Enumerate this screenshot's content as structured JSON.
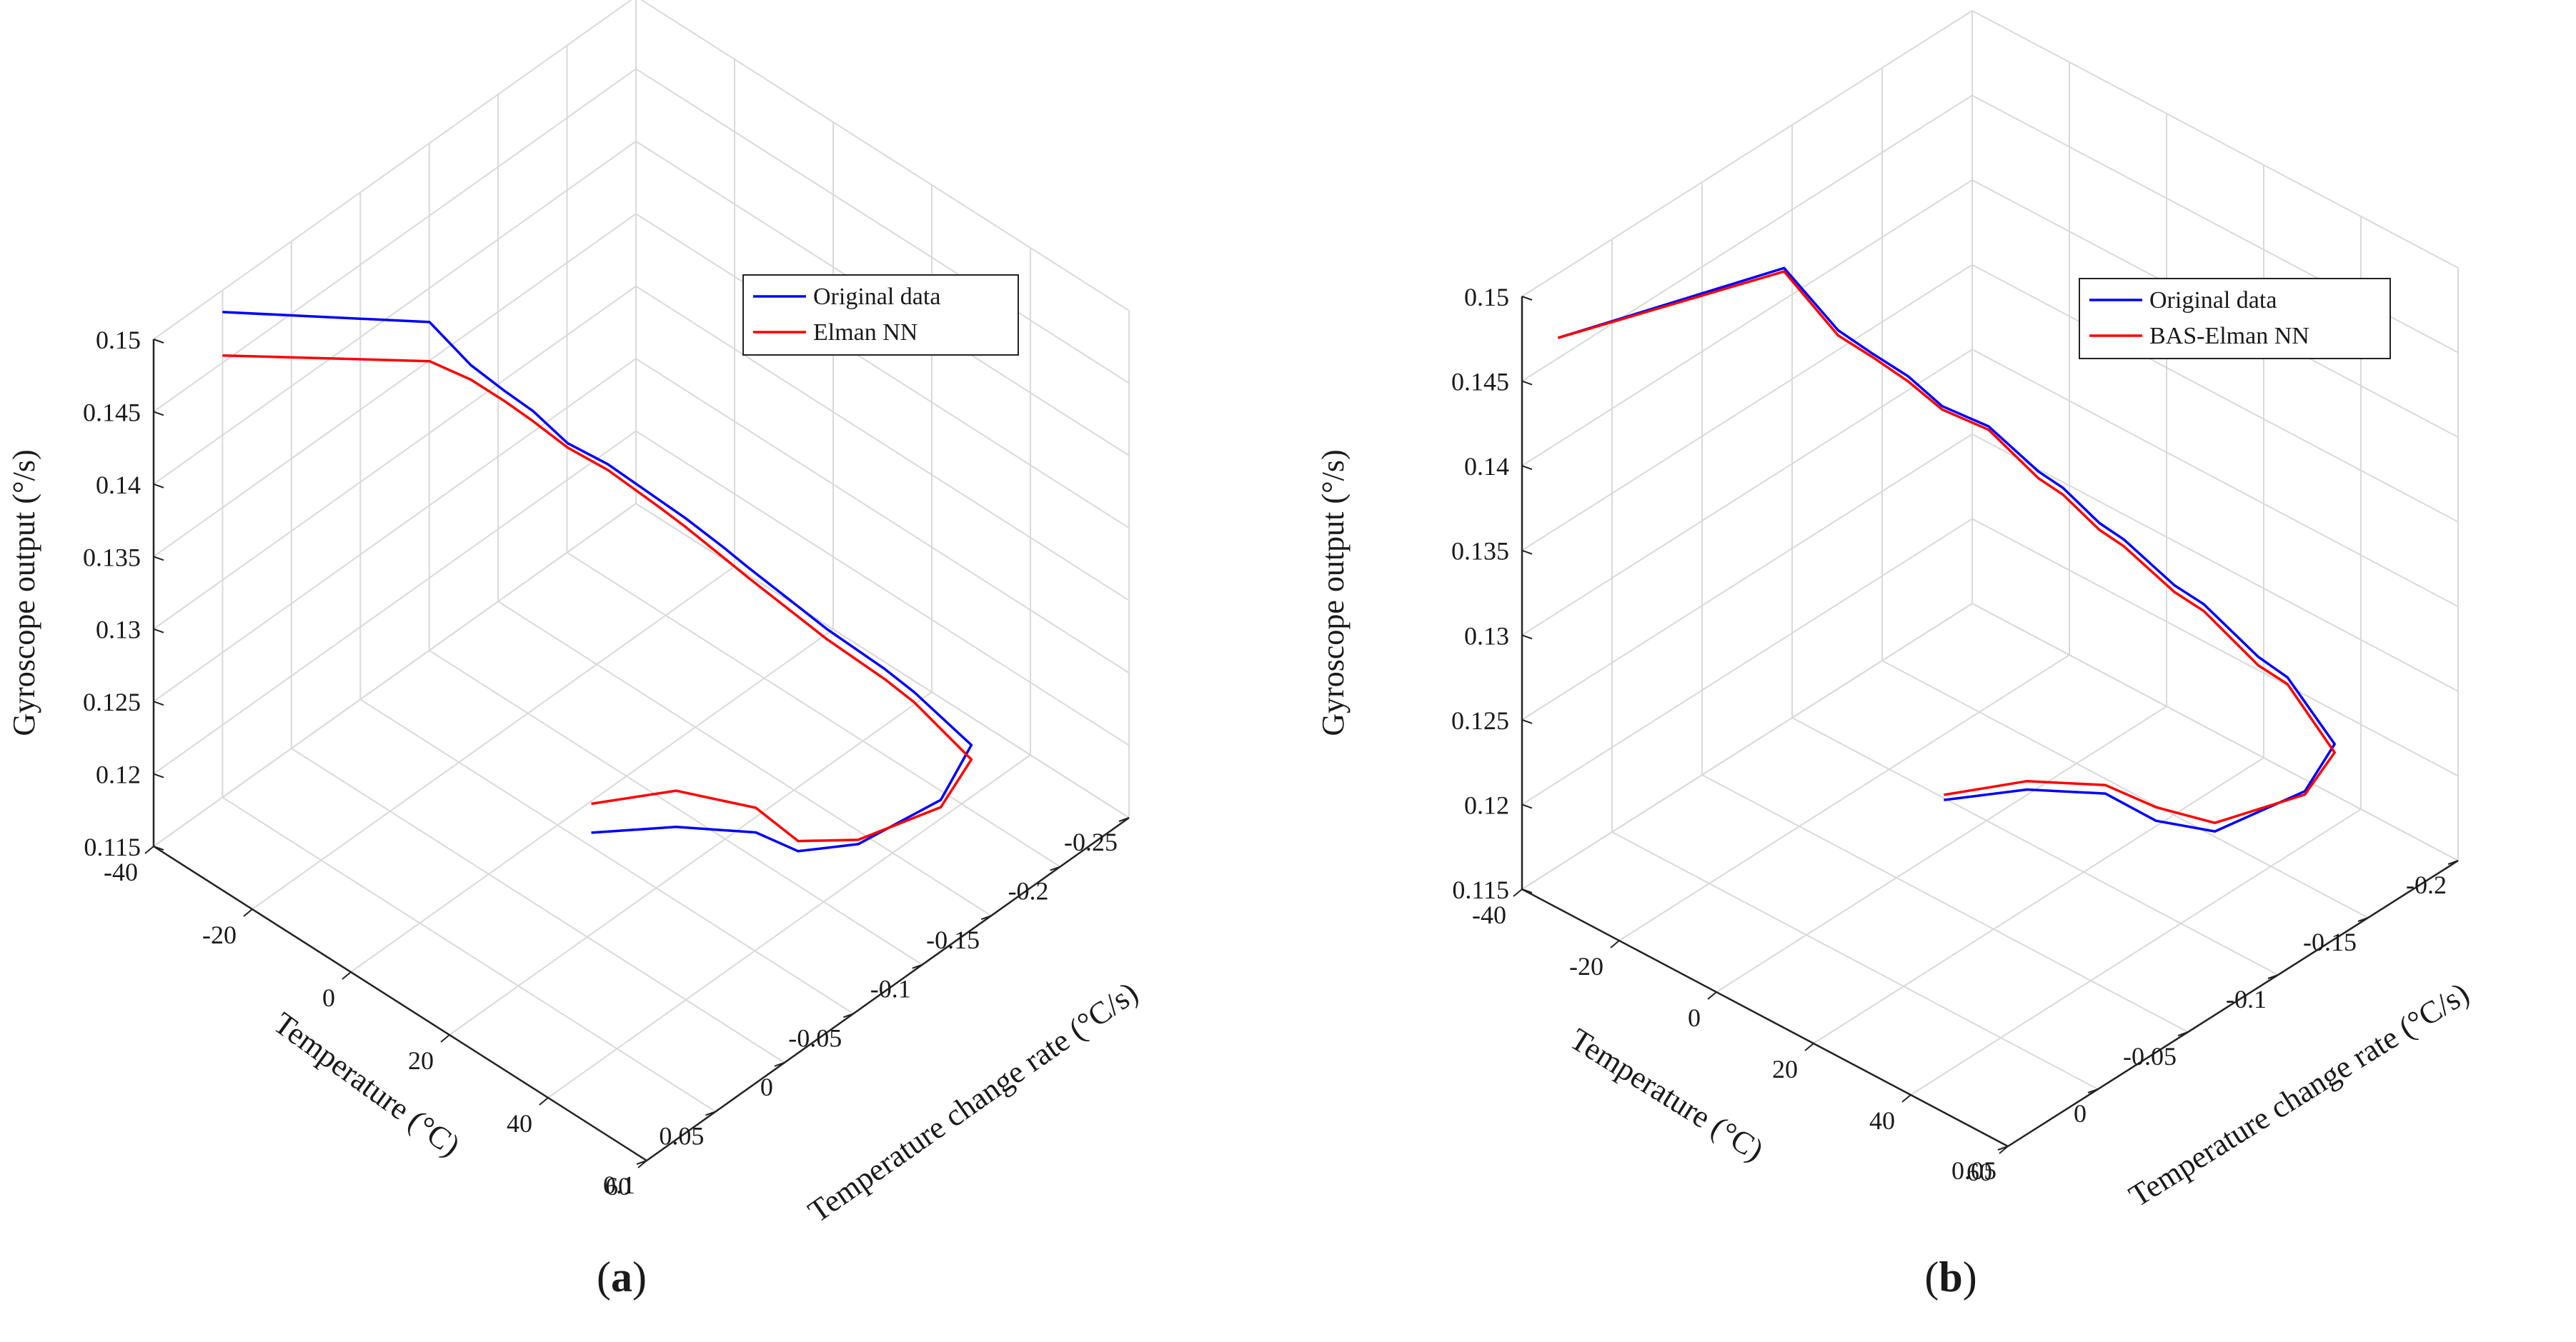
{
  "chart_data": [
    {
      "type": "line",
      "panel_label": "a",
      "zlabel": "Gyroscope output (°/s)",
      "xlabel": "Temperature (°C)",
      "ylabel": "Temperature change rate (°C/s)",
      "zlim": [
        0.115,
        0.15
      ],
      "z_ticks": [
        "0.115",
        "0.12",
        "0.125",
        "0.13",
        "0.135",
        "0.14",
        "0.145",
        "0.15"
      ],
      "xlim": [
        -40,
        60
      ],
      "x_ticks": [
        "-40",
        "-20",
        "0",
        "20",
        "40",
        "60"
      ],
      "ylim": [
        -0.25,
        0.1
      ],
      "y_ticks": [
        "-0.25",
        "-0.2",
        "-0.15",
        "-0.1",
        "-0.05",
        "0",
        "0.05",
        "0.1"
      ],
      "grid": true,
      "legend_position": "top-right",
      "series": [
        {
          "name": "Original data",
          "color": "#0000ff",
          "points": [
            [
              -40,
              0.05,
              0.1485
            ],
            [
              -12,
              0.0,
              0.1505
            ],
            [
              -12,
              -0.03,
              0.1455
            ],
            [
              -5,
              -0.03,
              0.1452
            ],
            [
              -5,
              -0.05,
              0.1425
            ],
            [
              2,
              -0.05,
              0.1418
            ],
            [
              6,
              -0.065,
              0.1402
            ],
            [
              7,
              -0.1,
              0.1355
            ],
            [
              12,
              -0.1,
              0.1354
            ],
            [
              14,
              -0.12,
              0.1325
            ],
            [
              19,
              -0.12,
              0.1322
            ],
            [
              22,
              -0.145,
              0.1285
            ],
            [
              28,
              -0.145,
              0.1282
            ],
            [
              30,
              -0.18,
              0.1235
            ],
            [
              36,
              -0.18,
              0.1232
            ],
            [
              42,
              -0.2,
              0.1195
            ],
            [
              47,
              -0.16,
              0.1195
            ],
            [
              47,
              -0.1,
              0.1205
            ],
            [
              46,
              -0.06,
              0.1225
            ],
            [
              43,
              -0.04,
              0.1245
            ],
            [
              38,
              0.0,
              0.1265
            ],
            [
              32,
              0.04,
              0.1275
            ]
          ]
        },
        {
          "name": "Elman NN",
          "color": "#ff0000",
          "points": [
            [
              -40,
              0.05,
              0.1455
            ],
            [
              -12,
              0.0,
              0.1478
            ],
            [
              -12,
              -0.03,
              0.1445
            ],
            [
              -5,
              -0.03,
              0.1445
            ],
            [
              -5,
              -0.05,
              0.1418
            ],
            [
              2,
              -0.05,
              0.1415
            ],
            [
              6,
              -0.065,
              0.1398
            ],
            [
              7,
              -0.1,
              0.135
            ],
            [
              12,
              -0.1,
              0.1348
            ],
            [
              14,
              -0.12,
              0.1318
            ],
            [
              19,
              -0.12,
              0.1315
            ],
            [
              22,
              -0.145,
              0.1278
            ],
            [
              28,
              -0.145,
              0.1275
            ],
            [
              30,
              -0.18,
              0.1228
            ],
            [
              36,
              -0.18,
              0.1225
            ],
            [
              42,
              -0.2,
              0.1185
            ],
            [
              47,
              -0.16,
              0.119
            ],
            [
              47,
              -0.1,
              0.1208
            ],
            [
              46,
              -0.06,
              0.1232
            ],
            [
              43,
              -0.04,
              0.1262
            ],
            [
              38,
              0.0,
              0.129
            ],
            [
              32,
              0.04,
              0.1295
            ]
          ]
        }
      ]
    },
    {
      "type": "line",
      "panel_label": "b",
      "zlabel": "Gyroscope output (°/s)",
      "xlabel": "Temperature (°C)",
      "ylabel": "Temperature change rate (°C/s)",
      "zlim": [
        0.115,
        0.15
      ],
      "z_ticks": [
        "0.115",
        "0.12",
        "0.125",
        "0.13",
        "0.135",
        "0.14",
        "0.145",
        "0.15"
      ],
      "xlim": [
        -40,
        60
      ],
      "x_ticks": [
        "-40",
        "-20",
        "0",
        "20",
        "40",
        "60"
      ],
      "ylim": [
        -0.2,
        0.05
      ],
      "y_ticks": [
        "-0.2",
        "-0.15",
        "-0.1",
        "-0.05",
        "0",
        "0.05"
      ],
      "grid": true,
      "legend_position": "top-right",
      "series": [
        {
          "name": "Original data",
          "color": "#0000ff",
          "points": [
            [
              -40,
              0.03,
              0.1462
            ],
            [
              -12,
              -0.02,
              0.1512
            ],
            [
              -12,
              -0.05,
              0.1455
            ],
            [
              -5,
              -0.05,
              0.1452
            ],
            [
              -5,
              -0.07,
              0.1425
            ],
            [
              2,
              -0.07,
              0.1418
            ],
            [
              6,
              -0.085,
              0.1402
            ],
            [
              7,
              -0.11,
              0.136
            ],
            [
              12,
              -0.11,
              0.1358
            ],
            [
              14,
              -0.125,
              0.133
            ],
            [
              19,
              -0.125,
              0.1328
            ],
            [
              22,
              -0.145,
              0.1292
            ],
            [
              28,
              -0.145,
              0.129
            ],
            [
              30,
              -0.17,
              0.1245
            ],
            [
              36,
              -0.17,
              0.1242
            ],
            [
              42,
              -0.18,
              0.1205
            ],
            [
              47,
              -0.15,
              0.1205
            ],
            [
              47,
              -0.1,
              0.1215
            ],
            [
              46,
              -0.07,
              0.124
            ],
            [
              43,
              -0.05,
              0.1265
            ],
            [
              38,
              -0.02,
              0.128
            ],
            [
              32,
              0.01,
              0.1285
            ]
          ]
        },
        {
          "name": "BAS-Elman NN",
          "color": "#ff0000",
          "points": [
            [
              -40,
              0.03,
              0.1462
            ],
            [
              -12,
              -0.02,
              0.151
            ],
            [
              -12,
              -0.05,
              0.1452
            ],
            [
              -5,
              -0.05,
              0.145
            ],
            [
              -5,
              -0.07,
              0.1422
            ],
            [
              2,
              -0.07,
              0.1416
            ],
            [
              6,
              -0.085,
              0.14
            ],
            [
              7,
              -0.11,
              0.1356
            ],
            [
              12,
              -0.11,
              0.1354
            ],
            [
              14,
              -0.125,
              0.1326
            ],
            [
              19,
              -0.125,
              0.1324
            ],
            [
              22,
              -0.145,
              0.1288
            ],
            [
              28,
              -0.145,
              0.1286
            ],
            [
              30,
              -0.17,
              0.124
            ],
            [
              36,
              -0.17,
              0.1238
            ],
            [
              42,
              -0.18,
              0.12
            ],
            [
              47,
              -0.15,
              0.1203
            ],
            [
              47,
              -0.1,
              0.122
            ],
            [
              46,
              -0.07,
              0.1248
            ],
            [
              43,
              -0.05,
              0.127
            ],
            [
              38,
              -0.02,
              0.1285
            ],
            [
              32,
              0.01,
              0.1288
            ]
          ]
        }
      ]
    }
  ]
}
